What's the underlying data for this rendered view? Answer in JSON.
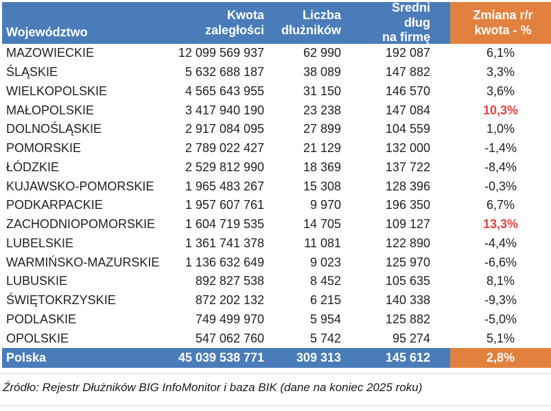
{
  "colors": {
    "header_blue": "#4a7cba",
    "accent_orange": "#e2813e",
    "highlight_red": "#dc4540",
    "text_dark": "#1f1f1f",
    "divider_gray": "#d9d9d9"
  },
  "chart_data": {
    "type": "table",
    "columns": [
      {
        "id": "region",
        "label": "Województwo"
      },
      {
        "id": "amount",
        "label": "Kwota\nzaległości"
      },
      {
        "id": "debtors",
        "label": "Liczba\ndłużników"
      },
      {
        "id": "avg_debt",
        "label": "Średni dług\nna firmę"
      },
      {
        "id": "change",
        "label": "Zmiana r/r\nkwota - %"
      }
    ],
    "rows": [
      {
        "region": "MAZOWIECKIE",
        "amount": "12 099 569 937",
        "debtors": "62 990",
        "avg_debt": "192 087",
        "change": "6,1%",
        "change_highlight": false
      },
      {
        "region": "ŚLĄSKIE",
        "amount": "5 632 688 187",
        "debtors": "38 089",
        "avg_debt": "147 882",
        "change": "3,3%",
        "change_highlight": false
      },
      {
        "region": "WIELKOPOLSKIE",
        "amount": "4 565 643 955",
        "debtors": "31 150",
        "avg_debt": "146 570",
        "change": "3,6%",
        "change_highlight": false
      },
      {
        "region": "MAŁOPOLSKIE",
        "amount": "3 417 940 190",
        "debtors": "23 238",
        "avg_debt": "147 084",
        "change": "10,3%",
        "change_highlight": true
      },
      {
        "region": "DOLNOŚLĄSKIE",
        "amount": "2 917 084 095",
        "debtors": "27 899",
        "avg_debt": "104 559",
        "change": "1,0%",
        "change_highlight": false
      },
      {
        "region": "POMORSKIE",
        "amount": "2 789 022 427",
        "debtors": "21 129",
        "avg_debt": "132 000",
        "change": "-1,4%",
        "change_highlight": false
      },
      {
        "region": "ŁÓDZKIE",
        "amount": "2 529 812 990",
        "debtors": "18 369",
        "avg_debt": "137 722",
        "change": "-8,4%",
        "change_highlight": false
      },
      {
        "region": "KUJAWSKO-POMORSKIE",
        "amount": "1 965 483 267",
        "debtors": "15 308",
        "avg_debt": "128 396",
        "change": "-0,3%",
        "change_highlight": false
      },
      {
        "region": "PODKARPACKIE",
        "amount": "1 957 607 761",
        "debtors": "9 970",
        "avg_debt": "196 350",
        "change": "6,7%",
        "change_highlight": false
      },
      {
        "region": "ZACHODNIOPOMORSKIE",
        "amount": "1 604 719 535",
        "debtors": "14 705",
        "avg_debt": "109 127",
        "change": "13,3%",
        "change_highlight": true
      },
      {
        "region": "LUBELSKIE",
        "amount": "1 361 741 378",
        "debtors": "11 081",
        "avg_debt": "122 890",
        "change": "-4,4%",
        "change_highlight": false
      },
      {
        "region": "WARMIŃSKO-MAZURSKIE",
        "amount": "1 136 632 649",
        "debtors": "9 023",
        "avg_debt": "125 970",
        "change": "-6,6%",
        "change_highlight": false
      },
      {
        "region": "LUBUSKIE",
        "amount": "892 827 538",
        "debtors": "8 452",
        "avg_debt": "105 635",
        "change": "8,1%",
        "change_highlight": false
      },
      {
        "region": "ŚWIĘTOKRZYSKIE",
        "amount": "872 202 132",
        "debtors": "6 215",
        "avg_debt": "140 338",
        "change": "-9,3%",
        "change_highlight": false
      },
      {
        "region": "PODLASKIE",
        "amount": "749 499 970",
        "debtors": "5 954",
        "avg_debt": "125 882",
        "change": "-5,0%",
        "change_highlight": false
      },
      {
        "region": "OPOLSKIE",
        "amount": "547 062 760",
        "debtors": "5 742",
        "avg_debt": "95 274",
        "change": "5,1%",
        "change_highlight": false
      }
    ],
    "total_row": {
      "region": "Polska",
      "amount": "45 039 538 771",
      "debtors": "309 313",
      "avg_debt": "145 612",
      "change": "2,8%"
    },
    "source_note": "Źródło: Rejestr Dłużników BIG InfoMonitor i baza BIK (dane na koniec 2025 roku)"
  }
}
